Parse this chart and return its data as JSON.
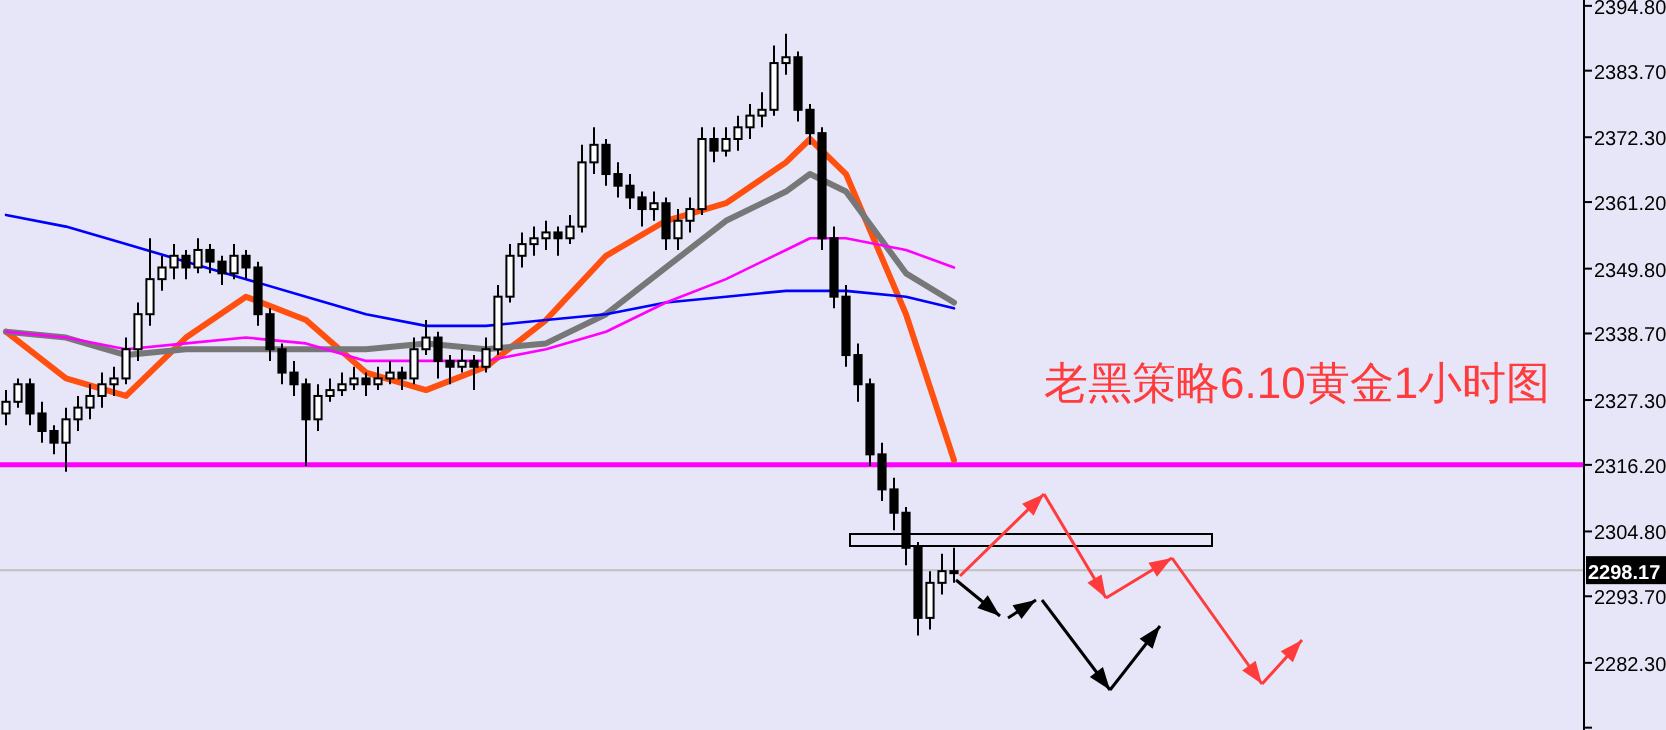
{
  "chart_data": {
    "type": "candlestick",
    "title": "老黑策略6.10黄金1小时图",
    "categories": [
      null,
      null,
      null,
      null,
      null,
      null,
      null,
      null,
      null,
      null,
      null,
      null,
      null,
      null,
      null,
      null,
      null,
      null,
      null,
      null,
      null,
      null,
      null,
      null,
      null,
      null,
      null,
      null,
      null,
      null,
      null,
      null,
      null,
      null,
      null,
      null,
      null,
      null,
      null,
      null,
      null,
      null,
      null,
      null,
      null,
      null,
      null,
      null,
      null,
      null,
      null,
      null,
      null,
      null,
      null,
      null,
      null,
      null,
      null,
      null,
      null,
      null,
      null,
      null,
      null,
      null,
      null,
      null,
      null,
      null,
      null,
      null,
      null,
      null,
      null,
      null,
      null,
      null,
      null,
      null,
      null,
      null,
      null,
      null,
      null,
      null,
      null,
      null,
      null,
      null,
      null,
      null,
      null,
      null,
      null,
      null,
      null,
      null,
      null,
      null,
      null,
      null,
      null,
      null,
      null,
      null,
      null,
      null,
      null,
      null,
      null,
      null,
      null,
      null,
      null,
      null,
      null,
      null,
      null,
      null,
      null,
      null,
      null,
      null,
      null,
      null,
      null,
      null,
      null,
      null,
      null,
      null
    ],
    "ohlc": [
      [
        2325,
        2329,
        2323,
        2327
      ],
      [
        2327,
        2331,
        2326,
        2330
      ],
      [
        2330,
        2331,
        2323,
        2325
      ],
      [
        2325,
        2327,
        2320,
        2322
      ],
      [
        2322,
        2323,
        2318,
        2320
      ],
      [
        2320,
        2326,
        2315,
        2324
      ],
      [
        2324,
        2328,
        2322,
        2326
      ],
      [
        2326,
        2330,
        2324,
        2328
      ],
      [
        2328,
        2332,
        2326,
        2330
      ],
      [
        2330,
        2333,
        2328,
        2331
      ],
      [
        2331,
        2338,
        2330,
        2336
      ],
      [
        2336,
        2344,
        2334,
        2342
      ],
      [
        2342,
        2355,
        2340,
        2348
      ],
      [
        2348,
        2352,
        2346,
        2350
      ],
      [
        2350,
        2354,
        2348,
        2352
      ],
      [
        2352,
        2353,
        2348,
        2350
      ],
      [
        2350,
        2355,
        2349,
        2353
      ],
      [
        2353,
        2354,
        2349,
        2351
      ],
      [
        2351,
        2352,
        2347,
        2349
      ],
      [
        2349,
        2354,
        2348,
        2352
      ],
      [
        2352,
        2353,
        2348,
        2350
      ],
      [
        2350,
        2351,
        2340,
        2342
      ],
      [
        2342,
        2343,
        2334,
        2336
      ],
      [
        2336,
        2337,
        2330,
        2332
      ],
      [
        2332,
        2334,
        2328,
        2330
      ],
      [
        2330,
        2331,
        2316,
        2324
      ],
      [
        2324,
        2330,
        2322,
        2328
      ],
      [
        2328,
        2331,
        2327,
        2329
      ],
      [
        2329,
        2332,
        2328,
        2330
      ],
      [
        2330,
        2333,
        2329,
        2331
      ],
      [
        2331,
        2332,
        2328,
        2330
      ],
      [
        2330,
        2333,
        2329,
        2331
      ],
      [
        2331,
        2334,
        2330,
        2332
      ],
      [
        2332,
        2333,
        2329,
        2331
      ],
      [
        2331,
        2338,
        2330,
        2336
      ],
      [
        2336,
        2341,
        2335,
        2338
      ],
      [
        2338,
        2339,
        2331,
        2334
      ],
      [
        2334,
        2335,
        2330,
        2333
      ],
      [
        2333,
        2336,
        2332,
        2334
      ],
      [
        2334,
        2335,
        2329,
        2333
      ],
      [
        2333,
        2338,
        2332,
        2336
      ],
      [
        2336,
        2347,
        2335,
        2345
      ],
      [
        2345,
        2354,
        2344,
        2352
      ],
      [
        2352,
        2356,
        2350,
        2354
      ],
      [
        2354,
        2357,
        2352,
        2355
      ],
      [
        2355,
        2358,
        2353,
        2356
      ],
      [
        2356,
        2357,
        2352,
        2355
      ],
      [
        2355,
        2359,
        2354,
        2357
      ],
      [
        2357,
        2371,
        2356,
        2368
      ],
      [
        2368,
        2374,
        2366,
        2371
      ],
      [
        2371,
        2372,
        2364,
        2366
      ],
      [
        2366,
        2368,
        2362,
        2364
      ],
      [
        2364,
        2366,
        2360,
        2362
      ],
      [
        2362,
        2363,
        2357,
        2360
      ],
      [
        2360,
        2363,
        2358,
        2361
      ],
      [
        2361,
        2362,
        2353,
        2355
      ],
      [
        2355,
        2360,
        2353,
        2358
      ],
      [
        2358,
        2362,
        2356,
        2360
      ],
      [
        2360,
        2374,
        2359,
        2372
      ],
      [
        2372,
        2374,
        2368,
        2370
      ],
      [
        2370,
        2374,
        2369,
        2372
      ],
      [
        2372,
        2376,
        2370,
        2374
      ],
      [
        2374,
        2378,
        2372,
        2376
      ],
      [
        2376,
        2380,
        2374,
        2377
      ],
      [
        2377,
        2388,
        2376,
        2385
      ],
      [
        2385,
        2390,
        2383,
        2386
      ],
      [
        2386,
        2387,
        2375,
        2377
      ],
      [
        2377,
        2378,
        2371,
        2373
      ],
      [
        2373,
        2374,
        2353,
        2355
      ],
      [
        2355,
        2357,
        2343,
        2345
      ],
      [
        2345,
        2347,
        2333,
        2335
      ],
      [
        2335,
        2337,
        2327,
        2330
      ],
      [
        2330,
        2331,
        2316,
        2318
      ],
      [
        2318,
        2320,
        2310,
        2312
      ],
      [
        2312,
        2314,
        2305,
        2308
      ],
      [
        2308,
        2309,
        2299,
        2302
      ],
      [
        2302,
        2303,
        2287,
        2290
      ],
      [
        2290,
        2298,
        2288,
        2296
      ],
      [
        2296,
        2301,
        2294,
        2298
      ],
      [
        2298,
        2302,
        2296,
        2298
      ],
      null,
      null,
      null,
      null,
      null,
      null,
      null,
      null,
      null,
      null,
      null,
      null,
      null,
      null,
      null,
      null,
      null,
      null,
      null,
      null,
      null,
      null,
      null,
      null,
      null,
      null,
      null,
      null,
      null,
      null,
      null,
      null,
      null,
      null,
      null,
      null,
      null,
      null,
      null,
      null,
      null,
      null,
      null,
      null,
      null,
      null,
      null,
      null,
      null,
      null,
      null,
      null
    ],
    "series": [
      {
        "type": "line",
        "color": "#ff5010",
        "values": [
          2339,
          null,
          null,
          null,
          null,
          2331,
          null,
          null,
          null,
          null,
          2328,
          null,
          null,
          null,
          null,
          2338,
          null,
          null,
          null,
          null,
          2345,
          null,
          null,
          null,
          null,
          2341,
          null,
          null,
          null,
          null,
          2332,
          null,
          null,
          null,
          null,
          2329,
          null,
          null,
          null,
          null,
          2333,
          null,
          null,
          null,
          null,
          2341,
          null,
          null,
          null,
          null,
          2352,
          null,
          null,
          null,
          null,
          2358,
          null,
          null,
          null,
          null,
          2361,
          null,
          null,
          null,
          null,
          2368,
          null,
          2372,
          null,
          null,
          2366,
          null,
          null,
          null,
          null,
          2342,
          null,
          null,
          null,
          2317,
          null,
          null,
          null,
          null,
          null,
          null,
          null,
          null,
          null,
          null,
          null,
          null,
          null,
          null,
          null,
          null,
          null,
          null,
          null,
          null,
          null,
          null,
          null,
          null,
          null,
          null,
          null,
          null,
          null,
          null,
          null,
          null,
          null,
          null,
          null,
          null,
          null,
          null,
          null,
          null,
          null,
          null,
          null,
          null,
          null,
          null,
          null,
          null,
          null,
          null,
          null,
          null
        ]
      },
      {
        "type": "line",
        "color": "#777777",
        "values": [
          2339,
          null,
          null,
          null,
          null,
          2338,
          null,
          null,
          null,
          null,
          2335,
          null,
          null,
          null,
          null,
          2336,
          null,
          null,
          null,
          null,
          2336,
          null,
          null,
          null,
          null,
          2336,
          null,
          null,
          null,
          null,
          2336,
          null,
          null,
          null,
          null,
          2337,
          null,
          null,
          null,
          null,
          2336,
          null,
          null,
          null,
          null,
          2337,
          null,
          null,
          null,
          null,
          2342,
          null,
          null,
          null,
          null,
          2350,
          null,
          null,
          null,
          null,
          2358,
          null,
          null,
          null,
          null,
          2363,
          null,
          2366,
          null,
          null,
          2363,
          null,
          null,
          null,
          null,
          2349,
          null,
          null,
          null,
          2344,
          null,
          null,
          null,
          null,
          null,
          null,
          null,
          null,
          null,
          null,
          null,
          null,
          null,
          null,
          null,
          null,
          null,
          null,
          null,
          null,
          null,
          null,
          null,
          null,
          null,
          null,
          null,
          null,
          null,
          null,
          null,
          null,
          null,
          null,
          null,
          null,
          null,
          null,
          null,
          null,
          null,
          null,
          null,
          null,
          null,
          null,
          null,
          null,
          null,
          null,
          null,
          null
        ]
      },
      {
        "type": "line",
        "color": "#0000ff",
        "values": [
          2359,
          null,
          null,
          null,
          null,
          2357,
          null,
          null,
          null,
          null,
          2354,
          null,
          null,
          null,
          null,
          2351,
          null,
          null,
          null,
          null,
          2348,
          null,
          null,
          null,
          null,
          2345,
          null,
          null,
          null,
          null,
          2342,
          null,
          null,
          null,
          null,
          2340,
          null,
          null,
          null,
          null,
          2340,
          null,
          null,
          null,
          null,
          2341,
          null,
          null,
          null,
          null,
          2342,
          null,
          null,
          null,
          null,
          2344,
          null,
          null,
          null,
          null,
          2345,
          null,
          null,
          null,
          null,
          2346,
          null,
          null,
          null,
          null,
          2346,
          null,
          null,
          null,
          null,
          2345,
          null,
          null,
          null,
          2343,
          null,
          null,
          null,
          null,
          null,
          null,
          null,
          null,
          null,
          null,
          null,
          null,
          null,
          null,
          null,
          null,
          null,
          null,
          null,
          null,
          null,
          null,
          null,
          null,
          null,
          null,
          null,
          null,
          null,
          null,
          null,
          null,
          null,
          null,
          null,
          null,
          null,
          null,
          null,
          null,
          null,
          null,
          null,
          null,
          null,
          null,
          null,
          null,
          null,
          null,
          null,
          null
        ]
      },
      {
        "type": "line",
        "color": "#ff00ff",
        "values": [
          2339,
          null,
          null,
          null,
          null,
          2338,
          null,
          null,
          null,
          null,
          2336,
          null,
          null,
          null,
          null,
          2337,
          null,
          null,
          null,
          null,
          2338,
          null,
          null,
          null,
          null,
          2337,
          null,
          null,
          null,
          null,
          2334,
          null,
          null,
          null,
          null,
          2334,
          null,
          null,
          null,
          null,
          2334,
          null,
          null,
          null,
          null,
          2336,
          null,
          null,
          null,
          null,
          2339,
          null,
          null,
          null,
          null,
          2344,
          null,
          null,
          null,
          null,
          2348,
          null,
          null,
          null,
          null,
          2353,
          null,
          2355,
          null,
          null,
          2355,
          null,
          null,
          null,
          null,
          2353,
          null,
          null,
          null,
          2350,
          null,
          null,
          null,
          null,
          null,
          null,
          null,
          null,
          null,
          null,
          null,
          null,
          null,
          null,
          null,
          null,
          null,
          null,
          null,
          null,
          null,
          null,
          null,
          null,
          null,
          null,
          null,
          null,
          null,
          null,
          null,
          null,
          null,
          null,
          null,
          null,
          null,
          null,
          null,
          null,
          null,
          null,
          null,
          null,
          null,
          null,
          null,
          null,
          null,
          null,
          null,
          null
        ]
      }
    ],
    "ylim": [
      2270.8,
      2395.8
    ],
    "yticks": [
      {
        "value": 2394.8,
        "label": "2394.80"
      },
      {
        "value": 2383.7,
        "label": "2383.70"
      },
      {
        "value": 2372.3,
        "label": "2372.30"
      },
      {
        "value": 2361.2,
        "label": "2361.20"
      },
      {
        "value": 2349.8,
        "label": "2349.80"
      },
      {
        "value": 2338.7,
        "label": "2338.70"
      },
      {
        "value": 2327.3,
        "label": "2327.30"
      },
      {
        "value": 2316.2,
        "label": "2316.20"
      },
      {
        "value": 2304.8,
        "label": "2304.80"
      },
      {
        "value": 2293.7,
        "label": "2293.70"
      },
      {
        "value": 2282.3,
        "label": "2282.30"
      },
      {
        "value": 2271.2,
        "label": null
      }
    ],
    "ref_lines": [
      {
        "axis": "y",
        "value": 2316.2,
        "color": "#ff00ff"
      },
      {
        "axis": "y",
        "value": 2298.17,
        "label": "2298.17",
        "color": "#c0c0c0"
      }
    ],
    "tick_labels": "y",
    "grid": false
  }
}
